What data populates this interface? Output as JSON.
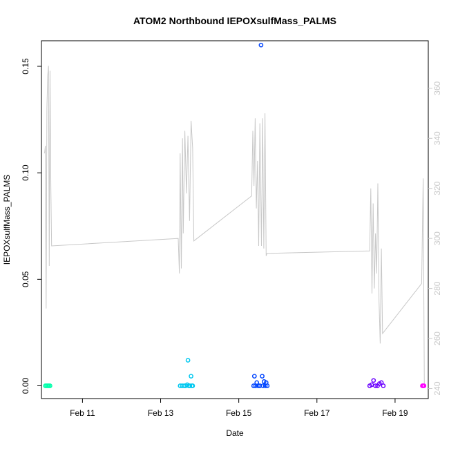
{
  "chart_data": {
    "type": "scatter",
    "title": "ATOM2 Northbound IEPOXsulfMass_PALMS",
    "xlabel": "Date",
    "ylabel": "IEPOXsulfMass_PALMS",
    "x_unit": "days, February 2017",
    "xlim": [
      9.95,
      19.85
    ],
    "ylim": [
      -0.006,
      0.162
    ],
    "y2lim": [
      236,
      379
    ],
    "grid": false,
    "x_ticks": [
      {
        "value": 11,
        "label": "Feb 11"
      },
      {
        "value": 13,
        "label": "Feb 13"
      },
      {
        "value": 15,
        "label": "Feb 15"
      },
      {
        "value": 17,
        "label": "Feb 17"
      },
      {
        "value": 19,
        "label": "Feb 19"
      }
    ],
    "y_ticks": [
      {
        "value": 0.0,
        "label": "0.00"
      },
      {
        "value": 0.05,
        "label": "0.05"
      },
      {
        "value": 0.1,
        "label": "0.10"
      },
      {
        "value": 0.15,
        "label": "0.15"
      }
    ],
    "y2_ticks": [
      {
        "value": 240,
        "label": "240"
      },
      {
        "value": 260,
        "label": "260"
      },
      {
        "value": 280,
        "label": "280"
      },
      {
        "value": 300,
        "label": "300"
      },
      {
        "value": 320,
        "label": "320"
      },
      {
        "value": 340,
        "label": "340"
      },
      {
        "value": 360,
        "label": "360"
      }
    ],
    "series": [
      {
        "color": "#00ffaa",
        "x": [
          10.05,
          10.08,
          10.11,
          10.14,
          10.17
        ],
        "y": [
          0.0,
          0.0,
          0.0,
          0.0,
          0.0
        ]
      },
      {
        "color": "#00c8f0",
        "x": [
          13.5,
          13.55,
          13.6,
          13.64,
          13.68,
          13.7,
          13.72,
          13.75,
          13.78,
          13.8,
          13.82
        ],
        "y": [
          0.0,
          0.0,
          0.0,
          0.0,
          0.0005,
          0.012,
          0.0,
          0.0,
          0.0045,
          0.0,
          0.0
        ]
      },
      {
        "color": "#0044ff",
        "x": [
          15.38,
          15.4,
          15.43,
          15.46,
          15.5,
          15.54,
          15.57,
          15.6,
          15.62,
          15.65,
          15.68,
          15.7,
          15.73
        ],
        "y": [
          0.0,
          0.0045,
          0.0,
          0.0015,
          0.0,
          0.0,
          0.16,
          0.0045,
          0.0,
          0.002,
          0.0,
          0.0015,
          0.0
        ]
      },
      {
        "color": "#6a00ff",
        "x": [
          18.35,
          18.4,
          18.45,
          18.5,
          18.55,
          18.6,
          18.65,
          18.7
        ],
        "y": [
          0.0,
          0.0005,
          0.0025,
          0.0,
          0.0,
          0.001,
          0.0015,
          0.0
        ]
      },
      {
        "color": "#ff00ff",
        "x": [
          19.7,
          19.72,
          19.74
        ],
        "y": [
          0.0,
          0.0,
          0.0
        ]
      }
    ],
    "secondary_series": {
      "color": "#c8c8c8",
      "axis": "right",
      "x": [
        10.03,
        10.05,
        10.07,
        10.09,
        10.11,
        10.13,
        10.15,
        10.17,
        10.19,
        10.21,
        13.45,
        13.48,
        13.5,
        13.53,
        13.56,
        13.58,
        13.62,
        13.66,
        13.7,
        13.74,
        13.78,
        13.82,
        13.85,
        15.33,
        15.36,
        15.39,
        15.42,
        15.45,
        15.48,
        15.51,
        15.54,
        15.58,
        15.61,
        15.64,
        15.67,
        15.7,
        15.72,
        18.35,
        18.38,
        18.41,
        18.44,
        18.47,
        18.5,
        18.53,
        18.56,
        18.59,
        18.62,
        18.65,
        18.68,
        19.68,
        19.72,
        19.75
      ],
      "y": [
        334,
        337,
        272,
        352,
        365,
        369,
        289,
        367,
        321,
        297,
        300,
        286,
        334,
        288,
        340,
        302,
        343,
        318,
        341,
        307,
        347,
        336,
        299,
        317,
        343,
        321,
        348,
        312,
        331,
        297,
        346,
        297,
        348,
        296,
        350,
        293,
        294,
        295,
        320,
        278,
        314,
        280,
        302,
        286,
        322,
        275,
        258,
        296,
        262,
        282,
        324,
        241
      ]
    }
  }
}
